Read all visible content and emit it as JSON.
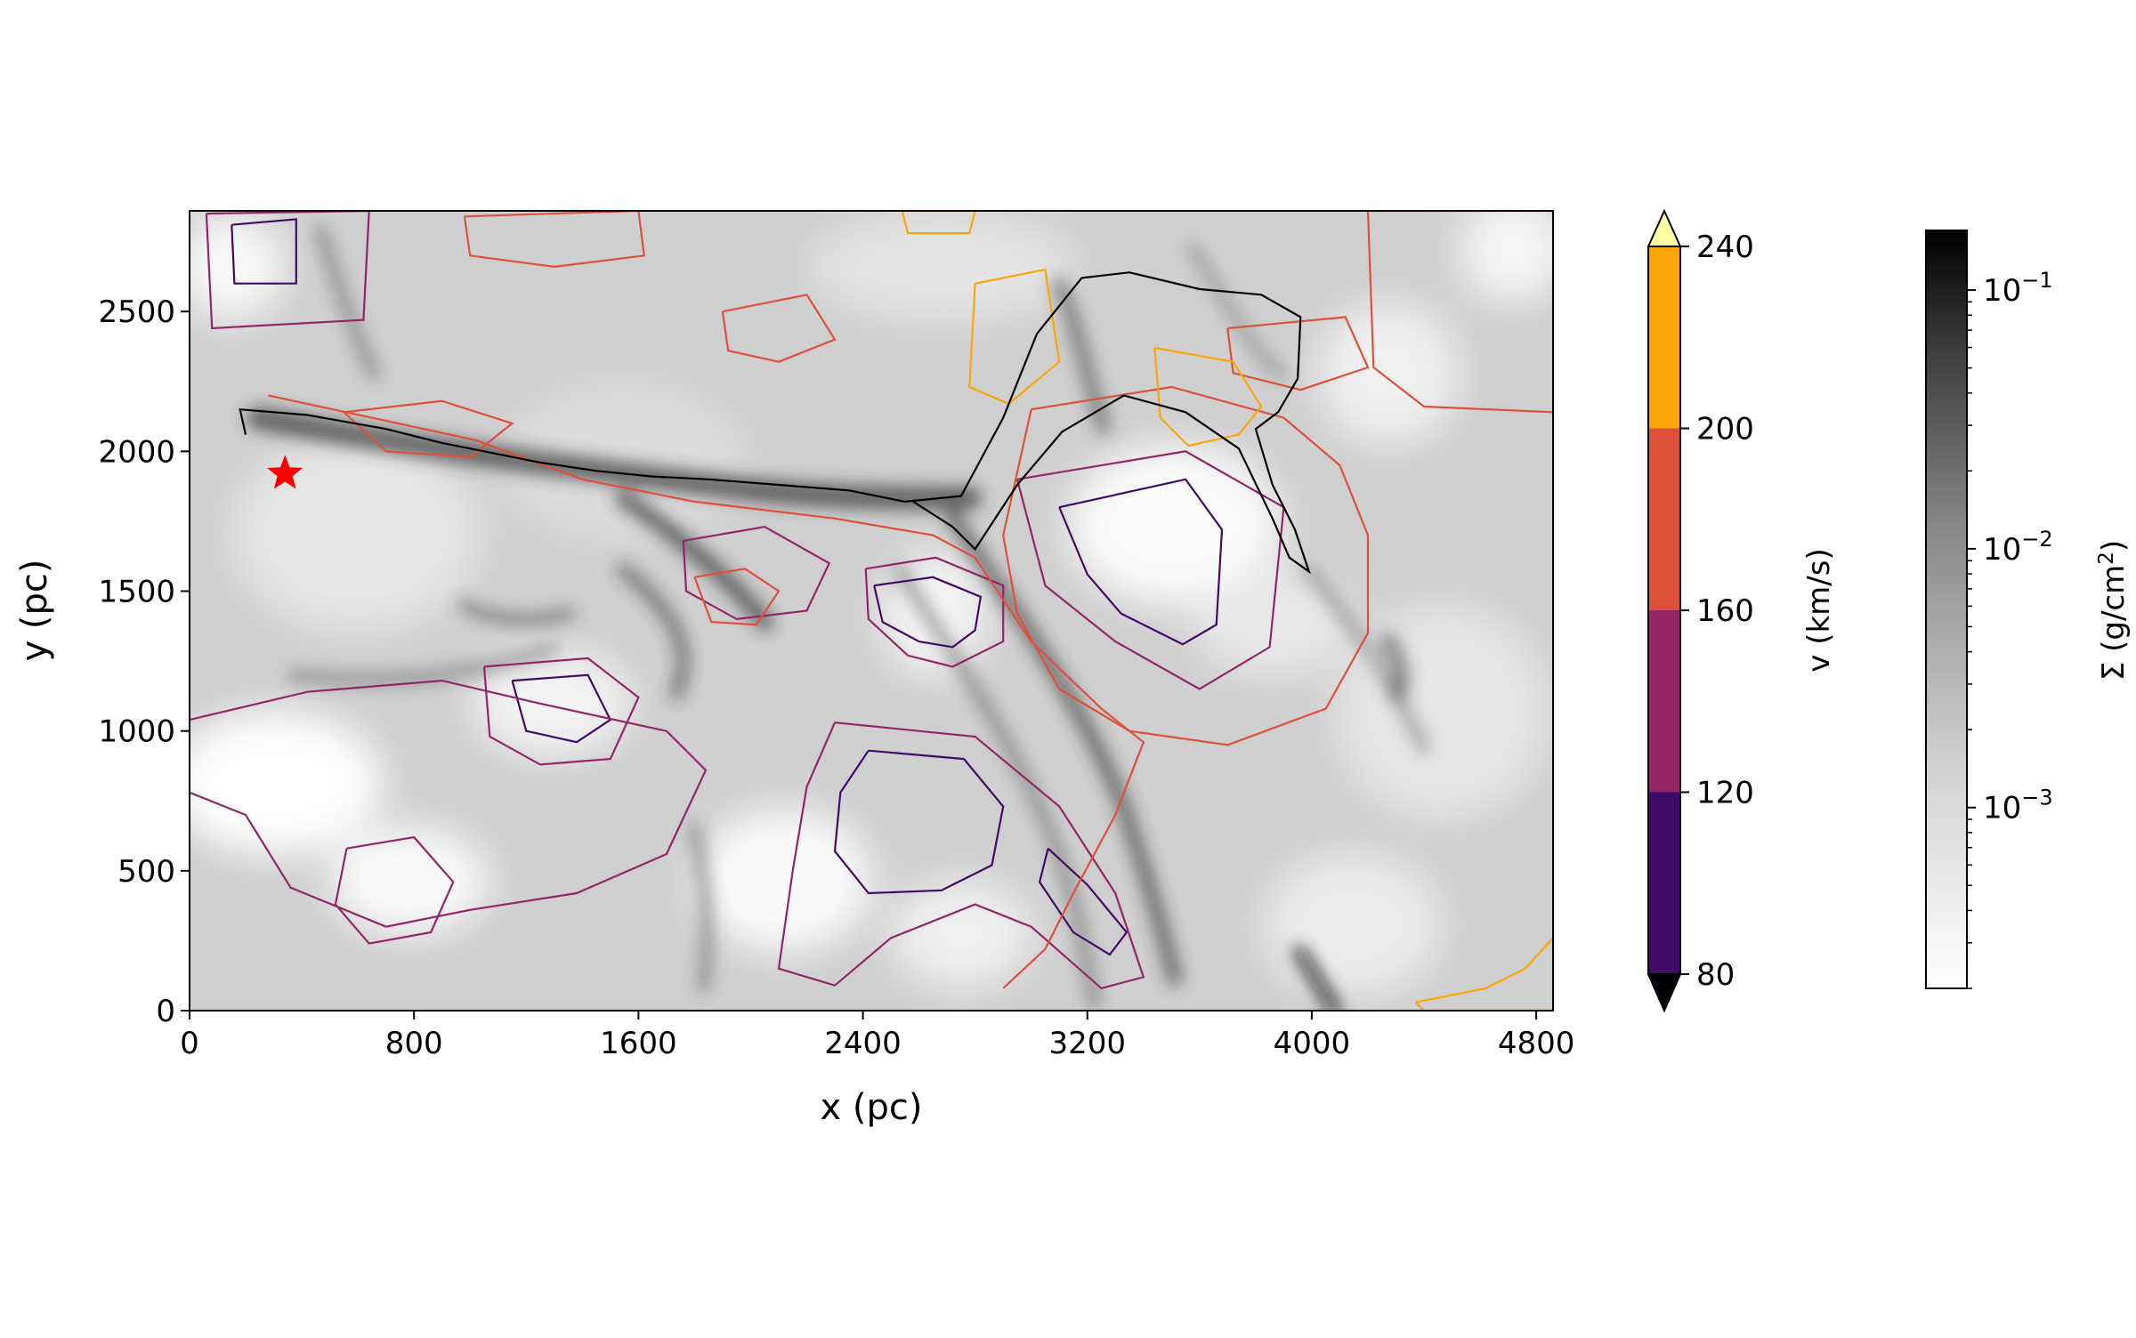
{
  "chart_data": {
    "type": "heatmap",
    "description_note": "",
    "xlabel": "x (pc)",
    "ylabel": "y (pc)",
    "xlim": [
      0,
      4860
    ],
    "ylim": [
      0,
      2860
    ],
    "x_ticks": [
      0,
      800,
      1600,
      2400,
      3200,
      4000,
      4800
    ],
    "y_ticks": [
      0,
      500,
      1000,
      1500,
      2000,
      2500
    ],
    "x_tick_labels": [
      "0",
      "800",
      "1600",
      "2400",
      "3200",
      "4000",
      "4800"
    ],
    "y_tick_labels": [
      "0",
      "500",
      "1000",
      "1500",
      "2000",
      "2500"
    ],
    "star_marker": {
      "x": 340,
      "y": 1920,
      "color": "#ff0000"
    },
    "velocity_colorbar": {
      "label": "v (km/s)",
      "ticks": [
        "80",
        "120",
        "160",
        "200",
        "240"
      ],
      "bins": [
        {
          "from": 80,
          "to": 120,
          "color": "#420a68"
        },
        {
          "from": 120,
          "to": 160,
          "color": "#932667"
        },
        {
          "from": 160,
          "to": 200,
          "color": "#dd513a"
        },
        {
          "from": 200,
          "to": 240,
          "color": "#fca50a"
        }
      ],
      "over_color": "#fcffa4",
      "under_color": "#000004"
    },
    "density_colorbar": {
      "label": "Σ (g/cm²)",
      "scale": "log",
      "range": [
        0.0002,
        0.17
      ],
      "tick_labels": [
        {
          "base": "10",
          "exp": "−1",
          "value": 0.1
        },
        {
          "base": "10",
          "exp": "−2",
          "value": 0.01
        },
        {
          "base": "10",
          "exp": "−3",
          "value": 0.001
        }
      ]
    },
    "contour_series": [
      {
        "name": "",
        "level": 80,
        "color": "#420a68",
        "paths": [
          [
            [
              2440,
              1520
            ],
            [
              2650,
              1550
            ],
            [
              2820,
              1480
            ],
            [
              2800,
              1360
            ],
            [
              2720,
              1300
            ],
            [
              2600,
              1320
            ],
            [
              2470,
              1390
            ],
            [
              2440,
              1520
            ]
          ],
          [
            [
              3100,
              1800
            ],
            [
              3550,
              1900
            ],
            [
              3680,
              1720
            ],
            [
              3660,
              1380
            ],
            [
              3540,
              1310
            ],
            [
              3320,
              1420
            ],
            [
              3200,
              1560
            ],
            [
              3100,
              1800
            ]
          ],
          [
            [
              2420,
              930
            ],
            [
              2760,
              900
            ],
            [
              2900,
              730
            ],
            [
              2860,
              520
            ],
            [
              2680,
              430
            ],
            [
              2420,
              420
            ],
            [
              2300,
              570
            ],
            [
              2320,
              780
            ],
            [
              2420,
              930
            ]
          ],
          [
            [
              1150,
              1180
            ],
            [
              1420,
              1200
            ],
            [
              1500,
              1040
            ],
            [
              1380,
              960
            ],
            [
              1200,
              1000
            ],
            [
              1150,
              1180
            ]
          ],
          [
            [
              3060,
              580
            ],
            [
              3200,
              450
            ],
            [
              3340,
              280
            ],
            [
              3280,
              200
            ],
            [
              3150,
              280
            ],
            [
              3030,
              460
            ],
            [
              3060,
              580
            ]
          ],
          [
            [
              150,
              2810
            ],
            [
              380,
              2830
            ],
            [
              380,
              2600
            ],
            [
              160,
              2600
            ],
            [
              150,
              2810
            ]
          ]
        ]
      },
      {
        "name": "",
        "level": 120,
        "color": "#932667",
        "paths": [
          [
            [
              2410,
              1580
            ],
            [
              2660,
              1620
            ],
            [
              2900,
              1520
            ],
            [
              2900,
              1320
            ],
            [
              2720,
              1230
            ],
            [
              2560,
              1270
            ],
            [
              2420,
              1400
            ],
            [
              2410,
              1580
            ]
          ],
          [
            [
              2950,
              1900
            ],
            [
              3550,
              2000
            ],
            [
              3900,
              1800
            ],
            [
              3850,
              1300
            ],
            [
              3600,
              1150
            ],
            [
              3300,
              1320
            ],
            [
              3050,
              1520
            ],
            [
              2950,
              1900
            ]
          ],
          [
            [
              2300,
              1030
            ],
            [
              2800,
              980
            ],
            [
              3100,
              730
            ],
            [
              3300,
              420
            ],
            [
              3400,
              120
            ],
            [
              3250,
              80
            ],
            [
              3000,
              300
            ],
            [
              2800,
              380
            ],
            [
              2500,
              260
            ],
            [
              2300,
              90
            ],
            [
              2100,
              150
            ],
            [
              2150,
              500
            ],
            [
              2200,
              800
            ],
            [
              2300,
              1030
            ]
          ],
          [
            [
              1050,
              1230
            ],
            [
              1420,
              1260
            ],
            [
              1600,
              1120
            ],
            [
              1500,
              900
            ],
            [
              1250,
              880
            ],
            [
              1070,
              980
            ],
            [
              1050,
              1230
            ]
          ],
          [
            [
              560,
              580
            ],
            [
              800,
              620
            ],
            [
              940,
              460
            ],
            [
              860,
              280
            ],
            [
              640,
              240
            ],
            [
              520,
              380
            ],
            [
              560,
              580
            ]
          ],
          [
            [
              1760,
              1680
            ],
            [
              2050,
              1730
            ],
            [
              2280,
              1600
            ],
            [
              2200,
              1430
            ],
            [
              1950,
              1400
            ],
            [
              1770,
              1500
            ],
            [
              1760,
              1680
            ]
          ],
          [
            [
              60,
              2850
            ],
            [
              640,
              2860
            ],
            [
              620,
              2470
            ],
            [
              80,
              2440
            ],
            [
              60,
              2850
            ]
          ],
          [
            [
              0,
              1040
            ],
            [
              420,
              1140
            ],
            [
              900,
              1180
            ],
            [
              1240,
              1100
            ],
            [
              1700,
              1000
            ],
            [
              1840,
              860
            ],
            [
              1700,
              560
            ],
            [
              1380,
              420
            ],
            [
              1000,
              360
            ],
            [
              700,
              300
            ],
            [
              360,
              440
            ],
            [
              200,
              700
            ],
            [
              0,
              780
            ]
          ]
        ]
      },
      {
        "name": "",
        "level": 160,
        "color": "#dd513a",
        "paths": [
          [
            [
              280,
              2200
            ],
            [
              650,
              2120
            ],
            [
              1020,
              2040
            ],
            [
              1400,
              1900
            ],
            [
              1800,
              1820
            ],
            [
              2300,
              1760
            ],
            [
              2650,
              1700
            ],
            [
              2800,
              1620
            ],
            [
              3000,
              1320
            ],
            [
              3250,
              1080
            ],
            [
              3400,
              960
            ],
            [
              3300,
              700
            ],
            [
              3150,
              420
            ],
            [
              3050,
              220
            ],
            [
              2900,
              80
            ]
          ],
          [
            [
              3000,
              2150
            ],
            [
              3500,
              2230
            ],
            [
              3900,
              2120
            ],
            [
              4100,
              1950
            ],
            [
              4200,
              1700
            ],
            [
              4200,
              1350
            ],
            [
              4050,
              1080
            ],
            [
              3700,
              950
            ],
            [
              3350,
              1000
            ],
            [
              3100,
              1150
            ],
            [
              2950,
              1420
            ],
            [
              2900,
              1700
            ],
            [
              3000,
              2150
            ]
          ],
          [
            [
              1800,
              1550
            ],
            [
              1980,
              1580
            ],
            [
              2100,
              1500
            ],
            [
              2020,
              1380
            ],
            [
              1860,
              1390
            ],
            [
              1800,
              1550
            ]
          ],
          [
            [
              550,
              2140
            ],
            [
              900,
              2180
            ],
            [
              1150,
              2100
            ],
            [
              1000,
              1980
            ],
            [
              700,
              2000
            ],
            [
              550,
              2140
            ]
          ],
          [
            [
              3700,
              2440
            ],
            [
              4120,
              2480
            ],
            [
              4200,
              2300
            ],
            [
              3960,
              2220
            ],
            [
              3720,
              2280
            ],
            [
              3700,
              2440
            ]
          ],
          [
            [
              4200,
              2860
            ],
            [
              4860,
              2860
            ],
            [
              4860,
              2140
            ],
            [
              4400,
              2160
            ],
            [
              4220,
              2300
            ],
            [
              4200,
              2860
            ]
          ],
          [
            [
              1900,
              2500
            ],
            [
              2200,
              2560
            ],
            [
              2300,
              2400
            ],
            [
              2100,
              2320
            ],
            [
              1920,
              2360
            ],
            [
              1900,
              2500
            ]
          ],
          [
            [
              980,
              2840
            ],
            [
              1600,
              2860
            ],
            [
              1620,
              2700
            ],
            [
              1300,
              2660
            ],
            [
              1000,
              2700
            ],
            [
              980,
              2840
            ]
          ]
        ]
      },
      {
        "name": "",
        "level": 200,
        "color": "#fca50a",
        "paths": [
          [
            [
              3440,
              2370
            ],
            [
              3720,
              2320
            ],
            [
              3820,
              2160
            ],
            [
              3740,
              2060
            ],
            [
              3560,
              2020
            ],
            [
              3460,
              2120
            ],
            [
              3440,
              2370
            ]
          ],
          [
            [
              2800,
              2600
            ],
            [
              3050,
              2650
            ],
            [
              3100,
              2320
            ],
            [
              2920,
              2170
            ],
            [
              2780,
              2230
            ],
            [
              2800,
              2600
            ]
          ],
          [
            [
              4370,
              30
            ],
            [
              4620,
              80
            ],
            [
              4760,
              150
            ],
            [
              4860,
              260
            ],
            [
              4860,
              0
            ],
            [
              4400,
              0
            ],
            [
              4370,
              30
            ]
          ],
          [
            [
              2540,
              2860
            ],
            [
              2800,
              2860
            ],
            [
              2780,
              2780
            ],
            [
              2560,
              2780
            ],
            [
              2540,
              2860
            ]
          ]
        ]
      }
    ],
    "shock_front": [
      [
        200,
        2060
      ],
      [
        180,
        2150
      ],
      [
        420,
        2130
      ],
      [
        700,
        2080
      ],
      [
        900,
        2030
      ],
      [
        1050,
        2000
      ],
      [
        1250,
        1960
      ],
      [
        1450,
        1930
      ],
      [
        1650,
        1910
      ],
      [
        1850,
        1900
      ],
      [
        2100,
        1880
      ],
      [
        2350,
        1860
      ],
      [
        2550,
        1820
      ],
      [
        2750,
        1840
      ],
      [
        2900,
        2120
      ],
      [
        3020,
        2420
      ],
      [
        3180,
        2620
      ],
      [
        3350,
        2640
      ],
      [
        3600,
        2580
      ],
      [
        3820,
        2560
      ],
      [
        3960,
        2480
      ],
      [
        3950,
        2260
      ],
      [
        3880,
        2140
      ],
      [
        3800,
        2080
      ],
      [
        3860,
        1880
      ],
      [
        3940,
        1720
      ],
      [
        3990,
        1570
      ],
      [
        3920,
        1620
      ],
      [
        3860,
        1760
      ],
      [
        3740,
        2010
      ],
      [
        3550,
        2140
      ],
      [
        3330,
        2200
      ],
      [
        3110,
        2070
      ],
      [
        2950,
        1880
      ],
      [
        2800,
        1650
      ],
      [
        2720,
        1730
      ],
      [
        2580,
        1820
      ]
    ]
  }
}
